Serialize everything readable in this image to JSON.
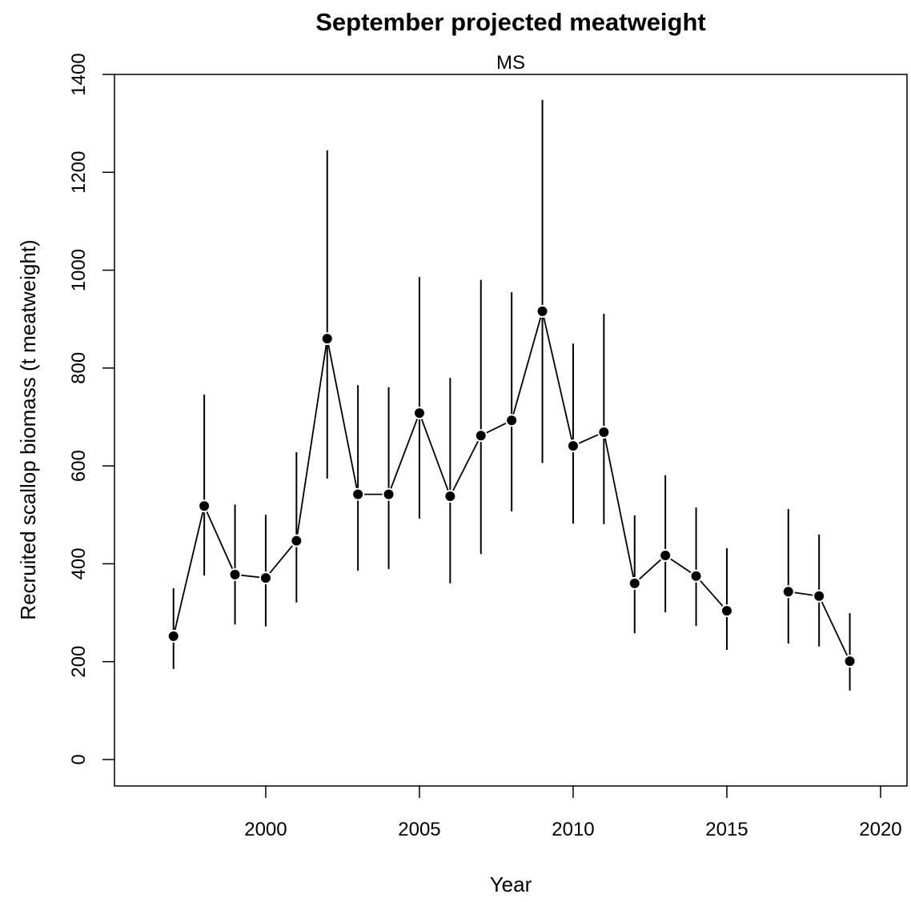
{
  "chart_data": {
    "type": "errorbar-line",
    "title": "September projected meatweight",
    "subtitle": "MS",
    "x_label": "Year",
    "y_label": "Recruited scallop biomass (t meatweight)",
    "x": [
      1997,
      1998,
      1999,
      2000,
      2001,
      2002,
      2003,
      2004,
      2005,
      2006,
      2007,
      2008,
      2009,
      2010,
      2011,
      2012,
      2013,
      2014,
      2015,
      2016,
      2017,
      2018,
      2019
    ],
    "series": [
      {
        "color": "#000000",
        "values": [
          252,
          518,
          378,
          371,
          447,
          860,
          542,
          542,
          708,
          538,
          662,
          693,
          916,
          641,
          669,
          360,
          417,
          375,
          304,
          null,
          343,
          334,
          201
        ],
        "lower": [
          185,
          376,
          276,
          272,
          321,
          574,
          386,
          389,
          492,
          360,
          420,
          507,
          606,
          482,
          481,
          258,
          301,
          273,
          224,
          null,
          237,
          231,
          141
        ],
        "upper": [
          350,
          746,
          521,
          500,
          628,
          1245,
          765,
          761,
          986,
          780,
          980,
          955,
          1348,
          850,
          911,
          499,
          581,
          515,
          432,
          null,
          512,
          460,
          299
        ]
      }
    ],
    "xlim": [
      1995.08,
      2020.86
    ],
    "xticks": [
      2000,
      2005,
      2010,
      2015,
      2020
    ],
    "ylim": [
      -54,
      1400
    ],
    "yticks": [
      0,
      200,
      400,
      600,
      800,
      1000,
      1200,
      1400
    ]
  }
}
